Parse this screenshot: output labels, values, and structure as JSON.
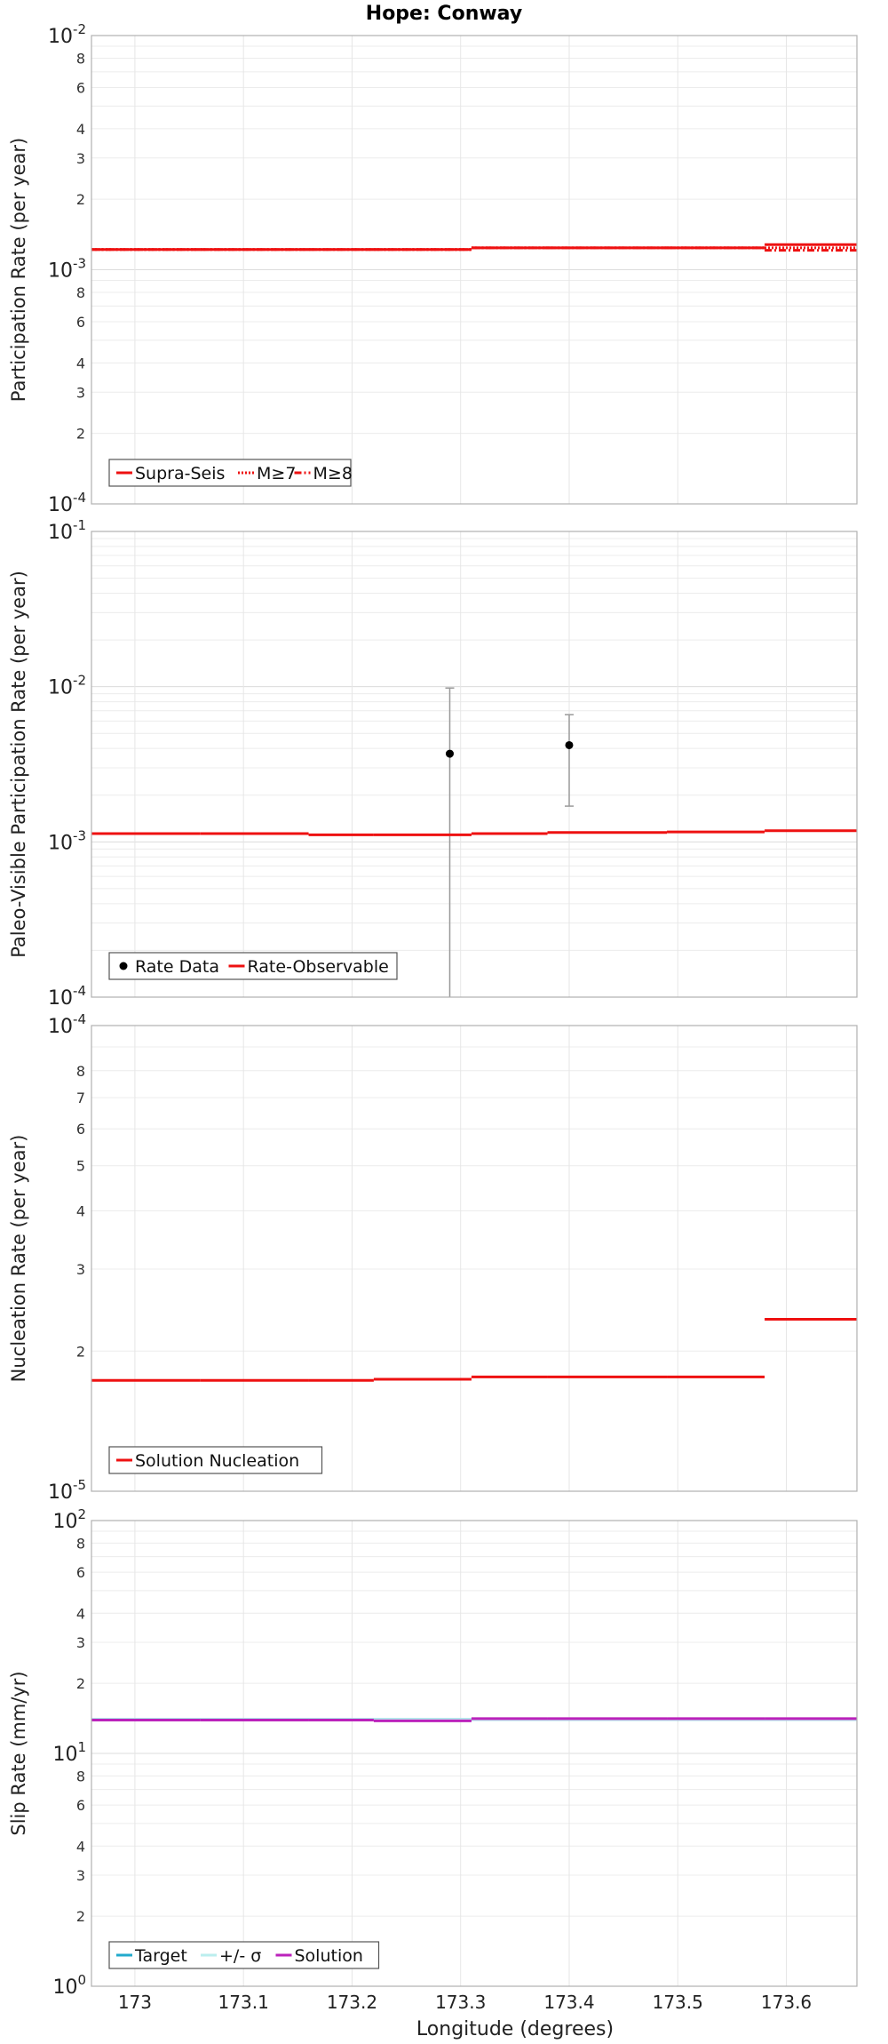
{
  "figure": {
    "title": "Hope: Conway",
    "xlabel": "Longitude (degrees)",
    "x_ticks": [
      173,
      173.1,
      173.2,
      173.3,
      173.4,
      173.5,
      173.6
    ],
    "x_tick_labels": [
      "173",
      "173.1",
      "173.2",
      "173.3",
      "173.4",
      "173.5",
      "173.6"
    ],
    "xlim": [
      172.96,
      173.665
    ],
    "bin_edges": [
      172.96,
      173.06,
      173.16,
      173.22,
      173.31,
      173.38,
      173.49,
      173.58,
      173.665
    ]
  },
  "chart_data": [
    {
      "type": "line",
      "ylabel": "Participation Rate (per year)",
      "yscale": "log",
      "ylim": [
        0.0001,
        0.01
      ],
      "grid": true,
      "legend_position": "bottom-left",
      "ytick_labels": [
        {
          "v": 0.01,
          "base": "10",
          "exp": "-2"
        },
        {
          "v": 0.008,
          "label": "8"
        },
        {
          "v": 0.006,
          "label": "6"
        },
        {
          "v": 0.004,
          "label": "4"
        },
        {
          "v": 0.003,
          "label": "3"
        },
        {
          "v": 0.002,
          "label": "2"
        },
        {
          "v": 0.001,
          "base": "10",
          "exp": "-3"
        },
        {
          "v": 0.0008,
          "label": "8"
        },
        {
          "v": 0.0006,
          "label": "6"
        },
        {
          "v": 0.0004,
          "label": "4"
        },
        {
          "v": 0.0003,
          "label": "3"
        },
        {
          "v": 0.0002,
          "label": "2"
        },
        {
          "v": 0.0001,
          "base": "10",
          "exp": "-4"
        }
      ],
      "series": [
        {
          "name": "Supra-Seis",
          "color": "#ee1111",
          "style": "solid",
          "values": [
            0.00122,
            0.00122,
            0.00122,
            0.00122,
            0.00124,
            0.00124,
            0.00124,
            0.00128
          ]
        },
        {
          "name": "M≥7",
          "color": "#ee1111",
          "style": "dotted",
          "values": [
            0.00122,
            0.00122,
            0.00122,
            0.00122,
            0.00124,
            0.00124,
            0.00124,
            0.00124
          ]
        },
        {
          "name": "M≥8",
          "color": "#ee1111",
          "style": "dashdot",
          "values": [
            0.00122,
            0.00122,
            0.00122,
            0.00122,
            0.00124,
            0.00124,
            0.00124,
            0.00121
          ]
        }
      ]
    },
    {
      "type": "line",
      "ylabel": "Paleo-Visible Participation Rate (per year)",
      "yscale": "log",
      "ylim": [
        0.0001,
        0.1
      ],
      "grid": true,
      "legend_position": "bottom-left",
      "ytick_labels": [
        {
          "v": 0.1,
          "base": "10",
          "exp": "-1"
        },
        {
          "v": 0.01,
          "base": "10",
          "exp": "-2"
        },
        {
          "v": 0.001,
          "base": "10",
          "exp": "-3"
        },
        {
          "v": 0.0001,
          "base": "10",
          "exp": "-4"
        }
      ],
      "series": [
        {
          "name": "Rate Data",
          "type": "scatter",
          "color": "#000000",
          "points": [
            {
              "x": 173.29,
              "y": 0.0037,
              "lo": 0.0001,
              "hi": 0.0098
            },
            {
              "x": 173.4,
              "y": 0.0042,
              "lo": 0.0017,
              "hi": 0.0066
            }
          ]
        },
        {
          "name": "Rate-Observable",
          "color": "#ee1111",
          "style": "solid",
          "values": [
            0.00113,
            0.00113,
            0.00111,
            0.00111,
            0.00113,
            0.00115,
            0.00116,
            0.00118
          ]
        }
      ]
    },
    {
      "type": "line",
      "ylabel": "Nucleation Rate (per year)",
      "yscale": "log",
      "ylim": [
        1e-05,
        0.0001
      ],
      "grid": true,
      "legend_position": "bottom-left",
      "ytick_labels": [
        {
          "v": 0.0001,
          "base": "10",
          "exp": "-4"
        },
        {
          "v": 8e-05,
          "label": "8"
        },
        {
          "v": 7e-05,
          "label": "7"
        },
        {
          "v": 6e-05,
          "label": "6"
        },
        {
          "v": 5e-05,
          "label": "5"
        },
        {
          "v": 4e-05,
          "label": "4"
        },
        {
          "v": 3e-05,
          "label": "3"
        },
        {
          "v": 2e-05,
          "label": "2"
        },
        {
          "v": 1e-05,
          "base": "10",
          "exp": "-5"
        }
      ],
      "series": [
        {
          "name": "Solution Nucleation",
          "color": "#ee1111",
          "style": "solid",
          "values": [
            1.73e-05,
            1.73e-05,
            1.73e-05,
            1.74e-05,
            1.76e-05,
            1.76e-05,
            1.76e-05,
            2.34e-05
          ]
        }
      ]
    },
    {
      "type": "line",
      "ylabel": "Slip Rate (mm/yr)",
      "yscale": "log",
      "ylim": [
        1,
        100
      ],
      "grid": true,
      "legend_position": "bottom-left",
      "ytick_labels": [
        {
          "v": 100,
          "base": "10",
          "exp": "2"
        },
        {
          "v": 80,
          "label": "8"
        },
        {
          "v": 60,
          "label": "6"
        },
        {
          "v": 40,
          "label": "4"
        },
        {
          "v": 30,
          "label": "3"
        },
        {
          "v": 20,
          "label": "2"
        },
        {
          "v": 10,
          "base": "10",
          "exp": "1"
        },
        {
          "v": 8,
          "label": "8"
        },
        {
          "v": 6,
          "label": "6"
        },
        {
          "v": 4,
          "label": "4"
        },
        {
          "v": 3,
          "label": "3"
        },
        {
          "v": 2,
          "label": "2"
        },
        {
          "v": 1,
          "base": "10",
          "exp": "0"
        }
      ],
      "series": [
        {
          "name": "Target",
          "color": "#22aacc",
          "style": "solid",
          "values": [
            14,
            14,
            14,
            14,
            14,
            14,
            14,
            14
          ]
        },
        {
          "name": "+/- σ",
          "color": "#bbeeee",
          "style": "solid",
          "values": [
            14,
            14,
            14,
            14,
            14,
            14,
            14,
            14
          ]
        },
        {
          "name": "Solution",
          "color": "#bb22bb",
          "style": "solid",
          "values": [
            13.9,
            13.9,
            13.9,
            13.8,
            14.1,
            14.1,
            14.1,
            14.1
          ]
        }
      ]
    }
  ]
}
